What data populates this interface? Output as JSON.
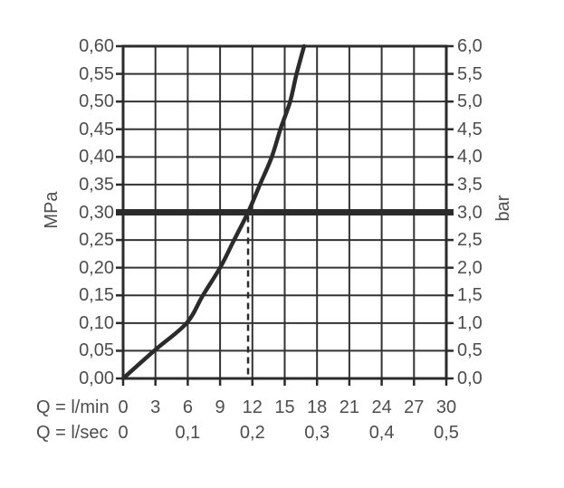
{
  "colors": {
    "background": "#ffffff",
    "grid": "#333333",
    "frame": "#2b2b2b",
    "curve": "#2b2b2b",
    "reference_line": "#2b2b2b",
    "dashed_line": "#2b2b2b",
    "text": "#4d4d4d"
  },
  "chart_data": {
    "type": "line",
    "title": "",
    "description": "Flow rate versus pressure performance diagram",
    "grid": true,
    "legend": "none",
    "left_axis": {
      "label": "MPa",
      "min": 0,
      "max": 0.6,
      "step": 0.05,
      "tick_labels": [
        "0,60",
        "0,55",
        "0,50",
        "0,45",
        "0,40",
        "0,35",
        "0,30",
        "0,25",
        "0,20",
        "0,15",
        "0,10",
        "0,05",
        "0,00"
      ],
      "tick_values": [
        0.6,
        0.55,
        0.5,
        0.45,
        0.4,
        0.35,
        0.3,
        0.25,
        0.2,
        0.15,
        0.1,
        0.05,
        0.0
      ]
    },
    "right_axis": {
      "label": "bar",
      "min": 0,
      "max": 6,
      "step": 0.5,
      "tick_labels": [
        "6,0",
        "5,5",
        "5,0",
        "4,5",
        "4,0",
        "3,5",
        "3,0",
        "2,5",
        "2,0",
        "1,5",
        "1,0",
        "0,5",
        "0,0"
      ],
      "tick_values": [
        6.0,
        5.5,
        5.0,
        4.5,
        4.0,
        3.5,
        3.0,
        2.5,
        2.0,
        1.5,
        1.0,
        0.5,
        0.0
      ]
    },
    "x_axis_lmin": {
      "label": "Q = l/min",
      "min": 0,
      "max": 30,
      "tick_labels": [
        "0",
        "3",
        "6",
        "9",
        "12",
        "15",
        "18",
        "21",
        "24",
        "27",
        "30"
      ],
      "tick_values": [
        0,
        3,
        6,
        9,
        12,
        15,
        18,
        21,
        24,
        27,
        30
      ]
    },
    "x_axis_lsec": {
      "label": "Q = l/sec",
      "tick_labels": [
        "0",
        "0,1",
        "0,2",
        "0,3",
        "0,4",
        "0,5"
      ],
      "tick_values_lmin": [
        0,
        6,
        12,
        18,
        24,
        30
      ]
    },
    "reference_line": {
      "value_mpa": 0.3,
      "value_bar": 3.0
    },
    "indicator": {
      "flow_lmin": 11.6,
      "up_to_mpa": 0.3,
      "style": "dashed"
    },
    "series": [
      {
        "name": "flow-pressure-curve",
        "points_lmin_mpa": [
          [
            0,
            0
          ],
          [
            3,
            0.052
          ],
          [
            5.9,
            0.1
          ],
          [
            7.4,
            0.15
          ],
          [
            9.0,
            0.2
          ],
          [
            10.3,
            0.25
          ],
          [
            11.6,
            0.3
          ],
          [
            12.7,
            0.35
          ],
          [
            13.8,
            0.4
          ],
          [
            14.6,
            0.45
          ],
          [
            15.5,
            0.5
          ],
          [
            16.1,
            0.55
          ],
          [
            16.8,
            0.6
          ]
        ]
      }
    ]
  }
}
